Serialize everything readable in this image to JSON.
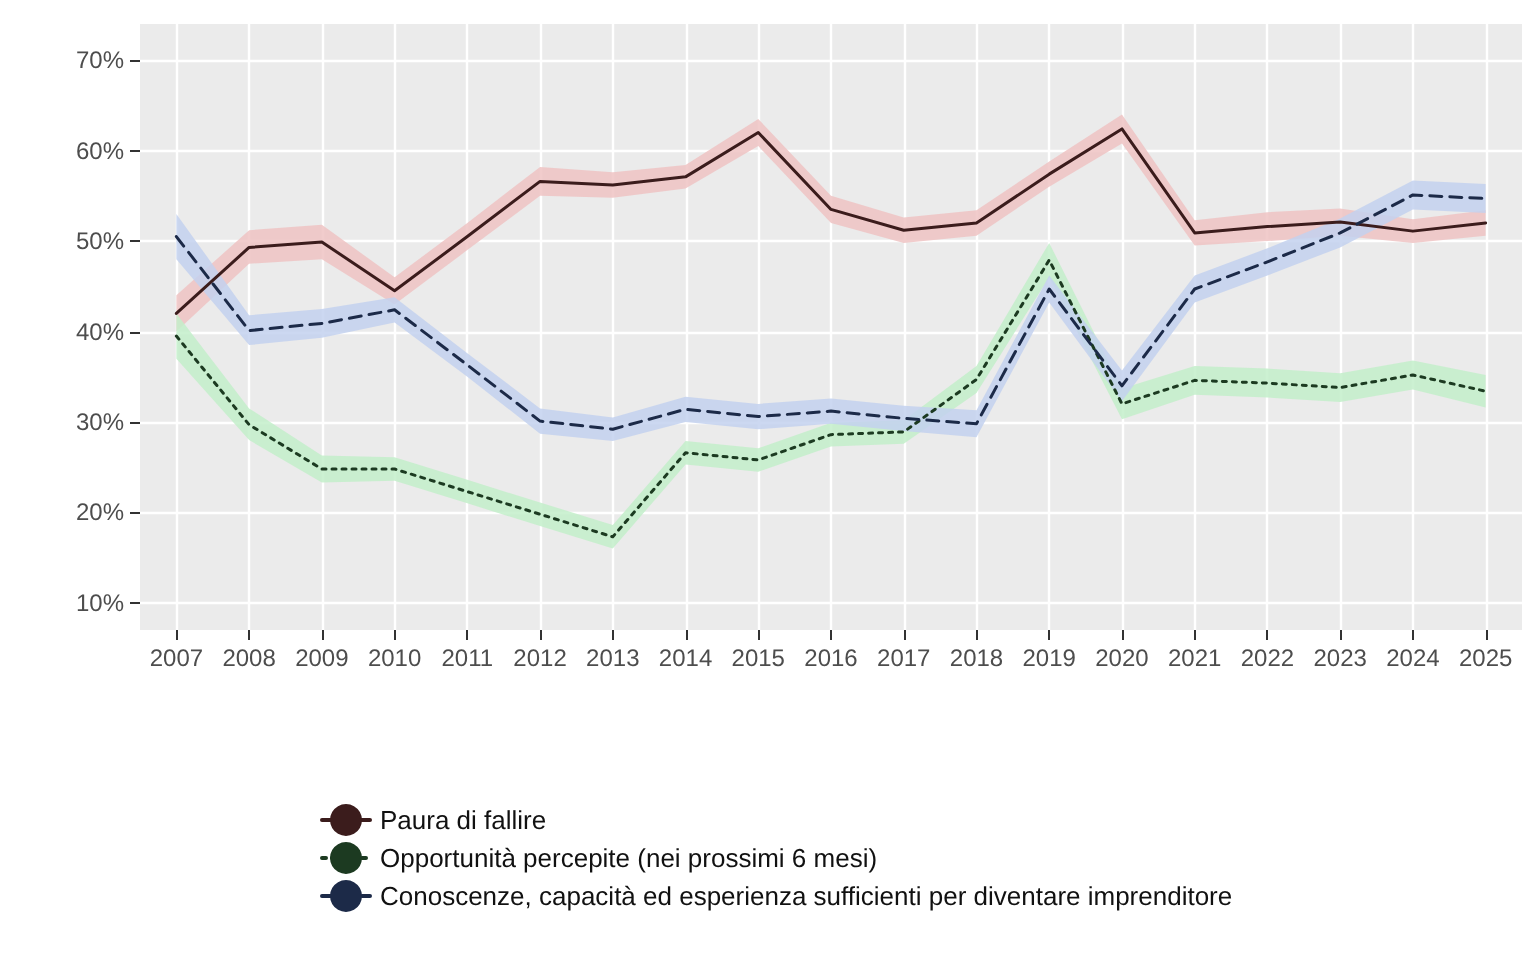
{
  "chart_data": {
    "type": "line",
    "x": [
      2007,
      2008,
      2009,
      2010,
      2011,
      2012,
      2013,
      2014,
      2015,
      2016,
      2017,
      2018,
      2019,
      2020,
      2021,
      2022,
      2023,
      2024,
      2025
    ],
    "xlim": [
      2006.5,
      2025.5
    ],
    "xticks": [
      2007,
      2008,
      2009,
      2010,
      2011,
      2012,
      2013,
      2014,
      2015,
      2016,
      2017,
      2018,
      2019,
      2020,
      2021,
      2022,
      2023,
      2024,
      2025
    ],
    "ylim": [
      7,
      74
    ],
    "yticks": [
      {
        "value": 10,
        "label": "10%"
      },
      {
        "value": 20,
        "label": "20%"
      },
      {
        "value": 30,
        "label": "30%"
      },
      {
        "value": 40,
        "label": "40%"
      },
      {
        "value": 50,
        "label": "50%"
      },
      {
        "value": 60,
        "label": "60%"
      },
      {
        "value": 70,
        "label": "70%"
      }
    ],
    "grid": true,
    "legend": "bottom",
    "series": [
      {
        "name": "Paura di fallire",
        "color": "#3b1c1c",
        "line_style": "solid",
        "values": [
          42,
          49.3,
          49.9,
          44.5,
          50.5,
          56.6,
          56.2,
          57.1,
          62,
          53.5,
          51.2,
          52,
          57.4,
          62.4,
          50.9,
          51.6,
          52.1,
          51.1,
          52
        ],
        "lower": [
          40,
          47.5,
          48,
          43,
          49,
          55,
          54.8,
          55.8,
          60.5,
          52,
          49.8,
          50.6,
          56,
          60.8,
          49.5,
          50,
          50.6,
          49.8,
          50.6
        ],
        "upper": [
          44,
          51.2,
          51.8,
          46,
          52,
          58.2,
          57.6,
          58.4,
          63.5,
          55,
          52.6,
          53.4,
          58.8,
          64,
          52.3,
          53.2,
          53.6,
          52.4,
          53.4
        ]
      },
      {
        "name": "Opportunità percepite (nei prossimi 6 mesi)",
        "color": "#1c3a21",
        "line_style": "dotted",
        "values": [
          39.5,
          29.7,
          24.8,
          24.8,
          22.3,
          19.8,
          17.3,
          26.6,
          25.8,
          28.6,
          28.9,
          34.7,
          47.9,
          32,
          34.6,
          34.3,
          33.8,
          35.2,
          33.4
        ],
        "lower": [
          37,
          28,
          23.3,
          23.5,
          21,
          18.5,
          16,
          25.3,
          24.5,
          27.3,
          27.6,
          33.2,
          46,
          30.3,
          33,
          32.7,
          32.2,
          33.6,
          31.6
        ],
        "upper": [
          42,
          31.5,
          26.3,
          26.1,
          23.6,
          21.1,
          18.6,
          27.9,
          27.1,
          29.9,
          30.2,
          36.2,
          49.8,
          33.7,
          36.2,
          35.9,
          35.4,
          36.8,
          35.2
        ]
      },
      {
        "name": "Conoscenze, capacità ed esperienza sufficienti per diventare imprenditore",
        "color": "#1c2a48",
        "line_style": "dashed",
        "values": [
          50.5,
          40.1,
          40.9,
          42.4,
          36.3,
          30.1,
          29.2,
          31.4,
          30.6,
          31.2,
          30.4,
          29.8,
          44.7,
          34,
          44.7,
          47.7,
          50.9,
          55.1,
          54.7
        ],
        "lower": [
          48,
          38.5,
          39.3,
          41,
          35,
          28.7,
          27.9,
          30,
          29.2,
          29.8,
          29,
          28.3,
          43.2,
          32.3,
          43.2,
          46.2,
          49.3,
          53.5,
          53.1
        ],
        "upper": [
          53,
          41.8,
          42.5,
          43.8,
          37.6,
          31.5,
          30.5,
          32.8,
          32,
          32.6,
          31.8,
          31.3,
          46.2,
          35.7,
          46.2,
          49.2,
          52.5,
          56.7,
          56.3
        ]
      }
    ]
  }
}
